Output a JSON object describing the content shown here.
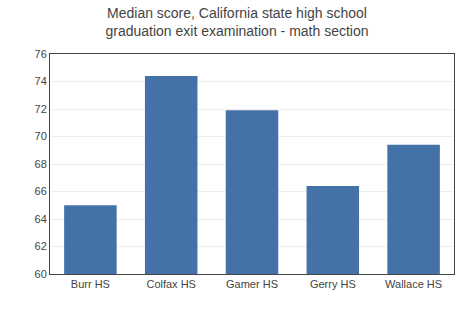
{
  "chart_data": {
    "type": "bar",
    "title": "Median score, California state high school\ngraduation exit examination - math section",
    "categories": [
      "Burr HS",
      "Colfax HS",
      "Gamer HS",
      "Gerry HS",
      "Wallace HS"
    ],
    "values": [
      65.0,
      74.4,
      71.9,
      66.4,
      69.4
    ],
    "color": "#4472a8",
    "ylim": [
      60,
      76
    ],
    "yticks": [
      60,
      62,
      64,
      66,
      68,
      70,
      72,
      74,
      76
    ],
    "grid": true
  }
}
